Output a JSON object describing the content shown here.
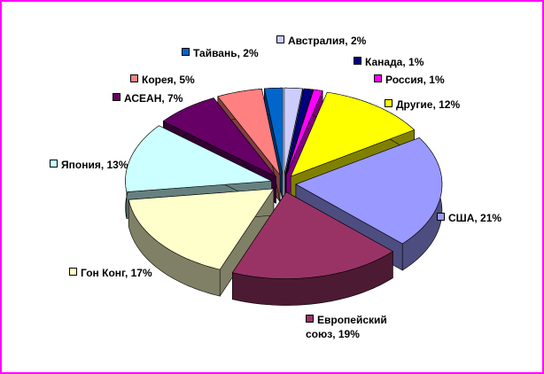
{
  "chart_data": {
    "type": "pie3d",
    "value_labels": [
      "Австралия, 2%",
      "Канада, 1%",
      "Россия, 1%",
      "Другие, 12%",
      "США, 21%",
      "Европейский союз, 19%",
      "Гон Конг, 17%",
      "Япония, 13%",
      "АСЕАН, 7%",
      "Корея, 5%",
      "Тайвань, 2%"
    ],
    "values": [
      2,
      1,
      1,
      12,
      21,
      19,
      17,
      13,
      7,
      5,
      2
    ],
    "colors": [
      "#ccccff",
      "#000080",
      "#ff00ff",
      "#ffff00",
      "#9999ff",
      "#993366",
      "#ffffcc",
      "#ccffff",
      "#660066",
      "#ff8080",
      "#0066cc"
    ]
  }
}
